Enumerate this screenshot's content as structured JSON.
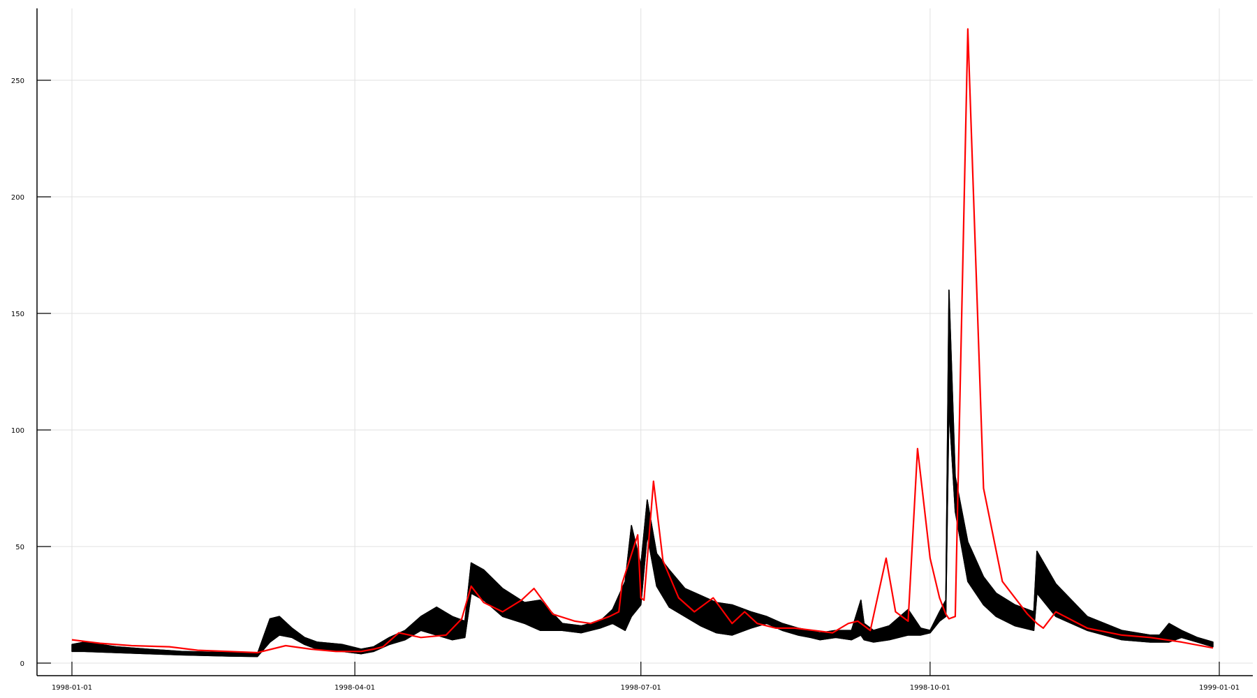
{
  "chart_data": {
    "type": "line",
    "title": "",
    "xlabel": "",
    "ylabel": "",
    "x_range": [
      "1998-01-01",
      "1999-01-01"
    ],
    "ylim": [
      0,
      280
    ],
    "grid": true,
    "legend": "none",
    "x_ticks": [
      "1998-01-01",
      "1998-04-01",
      "1998-07-01",
      "1998-10-01",
      "1999-01-01"
    ],
    "y_ticks": [
      "0",
      "50",
      "100",
      "150",
      "200",
      "250"
    ],
    "colors": {
      "ensemble": "#000000",
      "observed": "#ff0000",
      "grid": "#e0e0e0"
    },
    "series": [
      {
        "role": "ensemble",
        "color": "#000000",
        "x": [
          "1998-01-01",
          "1998-01-05",
          "1998-01-15",
          "1998-01-25",
          "1998-02-05",
          "1998-02-20",
          "1998-03-01",
          "1998-03-05",
          "1998-03-08",
          "1998-03-12",
          "1998-03-16",
          "1998-03-20",
          "1998-03-28",
          "1998-04-03",
          "1998-04-07",
          "1998-04-12",
          "1998-04-17",
          "1998-04-22",
          "1998-04-27",
          "1998-05-02",
          "1998-05-06",
          "1998-05-08",
          "1998-05-12",
          "1998-05-18",
          "1998-05-25",
          "1998-05-30",
          "1998-06-06",
          "1998-06-12",
          "1998-06-18",
          "1998-06-22",
          "1998-06-26",
          "1998-06-28",
          "1998-07-01",
          "1998-07-03",
          "1998-07-06",
          "1998-07-10",
          "1998-07-15",
          "1998-07-20",
          "1998-07-25",
          "1998-07-30",
          "1998-08-05",
          "1998-08-10",
          "1998-08-15",
          "1998-08-20",
          "1998-08-24",
          "1998-08-27",
          "1998-09-01",
          "1998-09-06",
          "1998-09-09",
          "1998-09-10",
          "1998-09-13",
          "1998-09-18",
          "1998-09-24",
          "1998-09-28",
          "1998-10-01",
          "1998-10-04",
          "1998-10-06",
          "1998-10-07",
          "1998-10-09",
          "1998-10-13",
          "1998-10-18",
          "1998-10-22",
          "1998-10-28",
          "1998-11-03",
          "1998-11-04",
          "1998-11-10",
          "1998-11-20",
          "1998-12-01",
          "1998-12-10",
          "1998-12-13",
          "1998-12-16",
          "1998-12-20",
          "1998-12-25",
          "1998-12-30"
        ],
        "lower": [
          5,
          5,
          4.5,
          4,
          3.5,
          3,
          2.8,
          9,
          12,
          11,
          8,
          6,
          5,
          4,
          5,
          8,
          10,
          14,
          12,
          10,
          11,
          30,
          27,
          20,
          17,
          14,
          14,
          13,
          15,
          17,
          14,
          20,
          25,
          55,
          33,
          24,
          20,
          16,
          13,
          12,
          15,
          17,
          14,
          12,
          11,
          10,
          11,
          10,
          12,
          10,
          9,
          10,
          12,
          12,
          13,
          18,
          20,
          110,
          65,
          35,
          25,
          20,
          16,
          14,
          30,
          20,
          14,
          10,
          9,
          9,
          9,
          11,
          9,
          7
        ],
        "upper": [
          8,
          9,
          7,
          6,
          5,
          4.5,
          4,
          19,
          20,
          15,
          11,
          9,
          8,
          6,
          7,
          11,
          14,
          20,
          24,
          20,
          18,
          43,
          40,
          32,
          26,
          27,
          17,
          16,
          18,
          23,
          35,
          59,
          42,
          70,
          47,
          40,
          32,
          29,
          26,
          25,
          22,
          20,
          17,
          15,
          14,
          13,
          14,
          14,
          27,
          17,
          14,
          16,
          23,
          15,
          14,
          22,
          27,
          160,
          80,
          52,
          37,
          30,
          25,
          22,
          48,
          34,
          20,
          14,
          12,
          12,
          17,
          14,
          11,
          9
        ]
      },
      {
        "name": "",
        "role": "observed",
        "color": "#ff0000",
        "x": [
          "1998-01-01",
          "1998-01-10",
          "1998-01-20",
          "1998-02-01",
          "1998-02-10",
          "1998-02-20",
          "1998-03-01",
          "1998-03-10",
          "1998-03-18",
          "1998-03-26",
          "1998-04-03",
          "1998-04-07",
          "1998-04-10",
          "1998-04-15",
          "1998-04-22",
          "1998-04-30",
          "1998-05-05",
          "1998-05-08",
          "1998-05-12",
          "1998-05-18",
          "1998-05-24",
          "1998-05-28",
          "1998-06-03",
          "1998-06-10",
          "1998-06-15",
          "1998-06-21",
          "1998-06-24",
          "1998-06-25",
          "1998-06-30",
          "1998-07-01",
          "1998-07-02",
          "1998-07-05",
          "1998-07-08",
          "1998-07-13",
          "1998-07-18",
          "1998-07-24",
          "1998-07-30",
          "1998-08-03",
          "1998-08-07",
          "1998-08-13",
          "1998-08-19",
          "1998-08-25",
          "1998-08-31",
          "1998-09-05",
          "1998-09-08",
          "1998-09-11",
          "1998-09-12",
          "1998-09-17",
          "1998-09-20",
          "1998-09-24",
          "1998-09-27",
          "1998-10-01",
          "1998-10-04",
          "1998-10-06",
          "1998-10-07",
          "1998-10-09",
          "1998-10-13",
          "1998-10-18",
          "1998-10-24",
          "1998-11-01",
          "1998-11-04",
          "1998-11-06",
          "1998-11-10",
          "1998-11-20",
          "1998-12-01",
          "1998-12-10",
          "1998-12-20",
          "1998-12-30"
        ],
        "values": [
          10,
          8.5,
          7.5,
          7,
          5.5,
          5,
          4.5,
          7.5,
          6,
          5,
          5,
          6,
          7,
          13,
          11,
          12,
          19,
          33,
          26,
          22,
          27,
          32,
          21,
          18,
          17,
          20,
          22,
          34,
          55,
          28,
          27,
          78,
          44,
          28,
          22,
          28,
          17,
          22,
          17,
          15,
          15,
          14,
          13,
          17,
          18,
          15,
          14,
          45,
          22,
          18,
          92,
          45,
          28,
          21,
          19,
          20,
          272,
          75,
          35,
          21,
          17,
          15,
          22,
          15,
          12,
          11,
          9,
          6.5
        ]
      }
    ]
  }
}
